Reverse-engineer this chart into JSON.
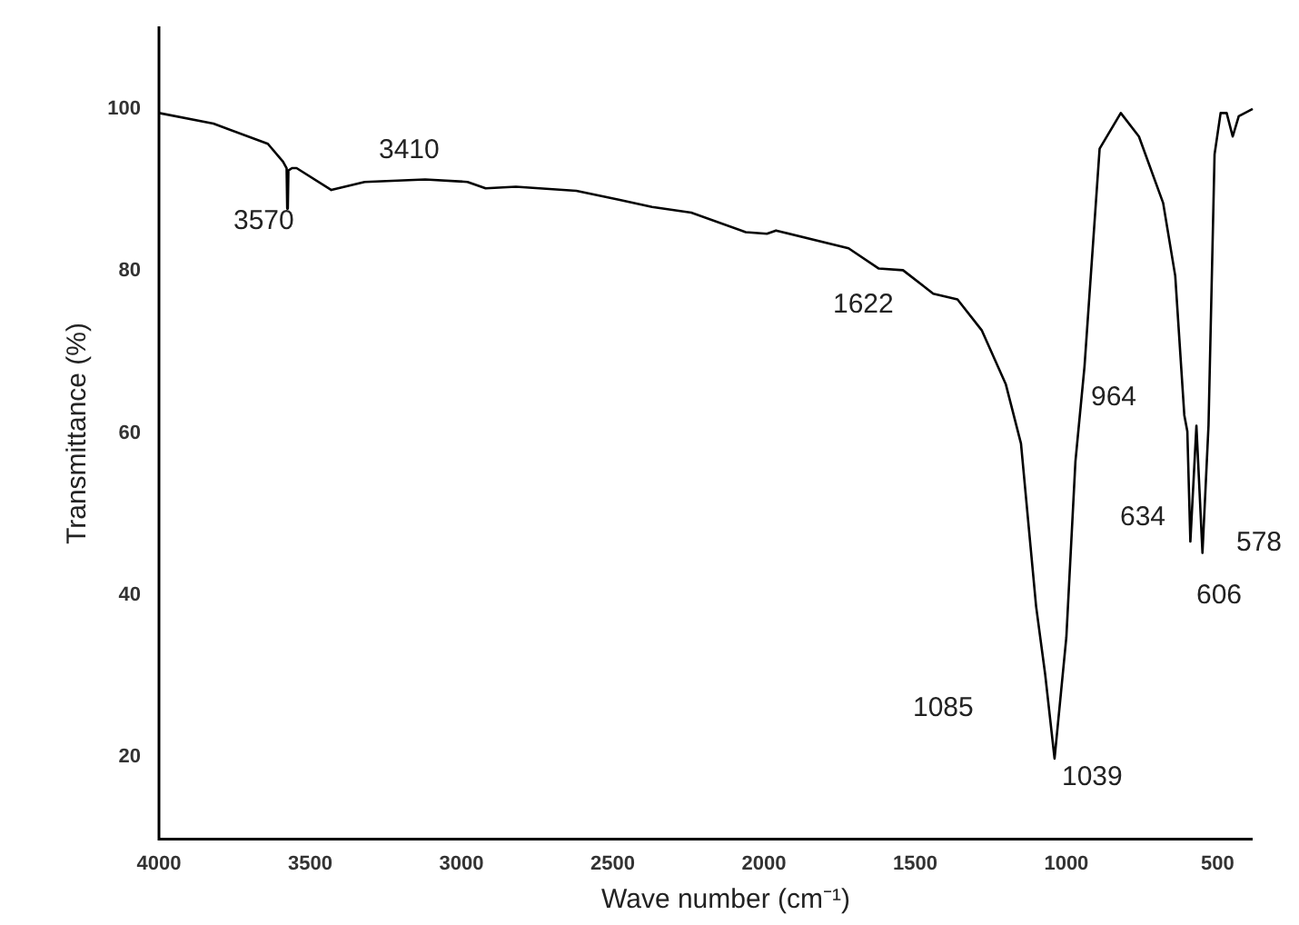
{
  "chart_data": {
    "type": "line",
    "xlabel": "Wave number (cm⁻¹)",
    "ylabel": "Transmittance (%)",
    "xlim": [
      4000,
      384
    ],
    "ylim": [
      9.5,
      110
    ],
    "xticks": [
      4000,
      3500,
      3000,
      2500,
      2000,
      1500,
      1000,
      500
    ],
    "yticks": [
      20,
      40,
      60,
      80,
      100
    ],
    "grid": false,
    "marker": "none",
    "line_style": "solid",
    "series": [
      {
        "color": "#000000",
        "x": [
          4000,
          3820,
          3640,
          3590,
          3578,
          3576,
          3574,
          3572,
          3560,
          3545,
          3430,
          3320,
          3120,
          2980,
          2920,
          2820,
          2620,
          2480,
          2370,
          2240,
          2060,
          1990,
          1960,
          1720,
          1620,
          1540,
          1440,
          1360,
          1280,
          1200,
          1150,
          1100,
          1070,
          1039,
          1000,
          970,
          940,
          890,
          820,
          760,
          680,
          640,
          610,
          600,
          590,
          570,
          550,
          530,
          510,
          490,
          470,
          450,
          430,
          384
        ],
        "values": [
          99.3,
          98,
          95.5,
          93.3,
          92.5,
          87.5,
          87.5,
          92.2,
          92.5,
          92.5,
          89.8,
          90.8,
          91.1,
          90.8,
          90,
          90.2,
          89.7,
          88.6,
          87.7,
          87,
          84.6,
          84.4,
          84.8,
          82.6,
          80.1,
          79.9,
          77,
          76.3,
          72.5,
          65.8,
          58.5,
          38.4,
          30,
          19.6,
          34.6,
          56.3,
          68,
          94.9,
          99.3,
          96.4,
          88.2,
          79.2,
          62,
          60,
          46.4,
          60.7,
          45,
          60.7,
          94.2,
          99.3,
          99.3,
          96.4,
          98.9,
          99.8
        ]
      }
    ],
    "annotations": [
      "3570",
      "3410",
      "1622",
      "964",
      "634",
      "606",
      "578",
      "1085",
      "1039"
    ]
  }
}
